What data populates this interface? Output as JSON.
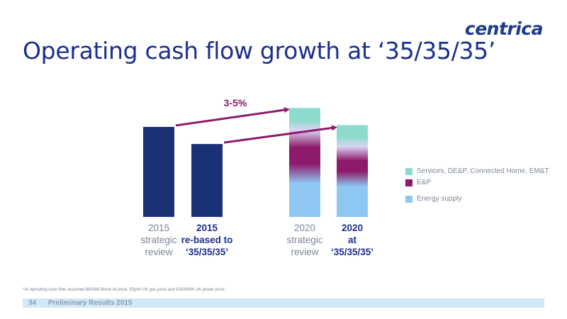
{
  "logo": "centrica",
  "title": "Operating cash flow growth at ‘35/35/35’",
  "footnote": "*At operating cash flow assumed $60/bbl Brent oil price, 50p/th UK gas price and £45/MWh UK power price",
  "footer": {
    "page_number": "34",
    "text": "Preliminary Results 2015"
  },
  "colors": {
    "navy": "#1b3175",
    "energy_supply": "#8ec7f2",
    "ep": "#8d1a6b",
    "services": "#8ddbce",
    "arrow": "#8d1a6b",
    "footer_band": "#d3e8f6"
  },
  "chart_data": {
    "type": "bar",
    "categories": [
      {
        "lines": [
          "2015",
          "strategic",
          "review"
        ],
        "bold": false
      },
      {
        "lines": [
          "2015",
          "re-based to",
          "‘35/35/35’"
        ],
        "bold": true
      },
      {
        "lines": [
          "2020",
          "strategic",
          "review"
        ],
        "bold": false
      },
      {
        "lines": [
          "2020",
          "at",
          "‘35/35/35’"
        ],
        "bold": true
      }
    ],
    "values": [
      1.0,
      0.81,
      1.21,
      1.02
    ],
    "segments": [
      {
        "name": "Energy supply",
        "values": [
          null,
          null,
          0.5,
          0.45
        ]
      },
      {
        "name": "E&P",
        "values": [
          null,
          null,
          0.36,
          0.23
        ]
      },
      {
        "name": "Services, DE&P, Connected Home, EM&T",
        "values": [
          null,
          null,
          0.35,
          0.34
        ]
      }
    ],
    "annotation": "3-5%",
    "legend": [
      "Services, DE&P, Connected Home, EM&T",
      "E&P",
      "Energy supply"
    ],
    "legend_position": "right",
    "ylim": [
      0,
      1.3
    ],
    "grid": false,
    "y_axis_visible": false
  }
}
